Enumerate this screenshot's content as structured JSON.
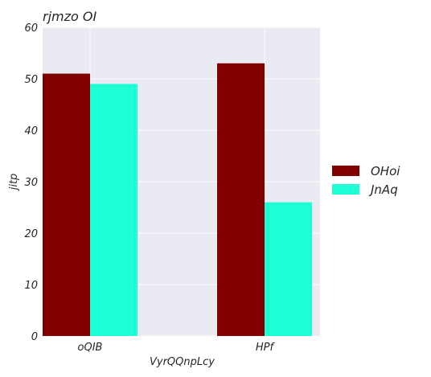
{
  "chart_data": {
    "type": "bar",
    "title": "rjmzo OI",
    "xlabel": "VyrQQnpLcy",
    "ylabel": "jitp",
    "categories": [
      "oQIB",
      "HPf"
    ],
    "series": [
      {
        "name": "OHoi",
        "values": [
          51,
          53
        ],
        "color": "#800000"
      },
      {
        "name": "JnAq",
        "values": [
          49,
          26
        ],
        "color": "#1effd5"
      }
    ],
    "ylim": [
      0,
      60
    ],
    "yticks": [
      0,
      10,
      20,
      30,
      40,
      50,
      60
    ],
    "grid": true,
    "legend_position": "right",
    "background": "#e9eaf2"
  }
}
